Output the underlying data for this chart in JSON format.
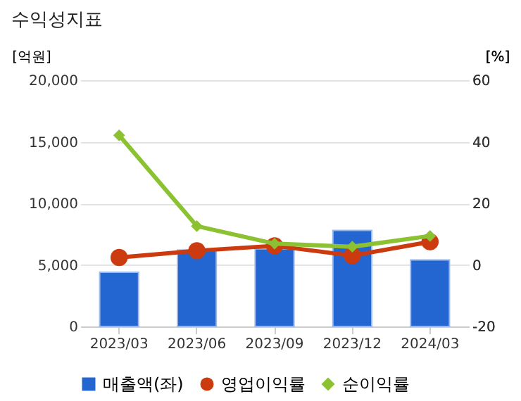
{
  "chart_data": {
    "type": "bar",
    "title": "수익성지표",
    "categories": [
      "2023/03",
      "2023/06",
      "2023/09",
      "2023/12",
      "2024/03"
    ],
    "series": [
      {
        "name": "매출액(좌)",
        "color": "#2366d1",
        "values": [
          4400,
          6200,
          6300,
          7800,
          5400
        ]
      },
      {
        "name": "영업이익률",
        "type": "line",
        "axis": "y2",
        "marker": "circle",
        "color": "#cc3b10",
        "values": [
          2.4,
          4.6,
          6.2,
          3.0,
          7.5
        ]
      },
      {
        "name": "순이익률",
        "type": "line",
        "axis": "y2",
        "marker": "diamond",
        "color": "#8cc231",
        "values": [
          42.1,
          12.6,
          6.9,
          5.9,
          9.4
        ]
      }
    ],
    "ylabel": "[억원]",
    "y2label": "[%]",
    "ylim": [
      0,
      20000
    ],
    "yticks": [
      {
        "value": 0,
        "label": "0"
      },
      {
        "value": 5000,
        "label": "5,000"
      },
      {
        "value": 10000,
        "label": "10,000"
      },
      {
        "value": 15000,
        "label": "15,000"
      },
      {
        "value": 20000,
        "label": "20,000"
      }
    ],
    "y2lim": [
      -20,
      60
    ],
    "y2ticks": [
      -20,
      0,
      20,
      40,
      60
    ],
    "grid": "y",
    "legend": "bottom"
  }
}
